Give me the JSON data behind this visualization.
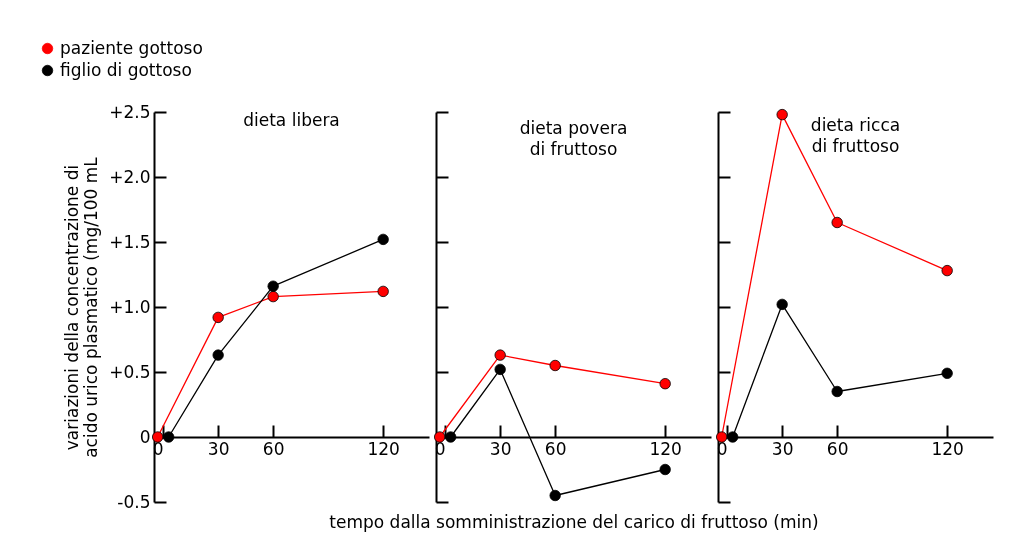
{
  "chart_data": [
    {
      "type": "line",
      "title": "dieta libera",
      "ylabel": "variazioni della concentrazione di\nacido urico plasmatico (mg/100 mL",
      "xlim": [
        -5,
        145
      ],
      "xticks": [
        0,
        30,
        60,
        120
      ],
      "ylim": [
        -0.5,
        2.5
      ],
      "yticks": [
        -0.5,
        0,
        {
          "value": 0.5,
          "label": "+0.5"
        },
        {
          "value": 1,
          "label": "+1.0"
        },
        {
          "value": 1.5,
          "label": "+1.5"
        },
        {
          "value": 2,
          "label": "+2.0"
        },
        {
          "value": 2.5,
          "label": "+2.5"
        }
      ],
      "marker": "circle",
      "legend": "top left",
      "series": [
        {
          "name": "paziente gottoso",
          "color": "#ff0000",
          "x": [
            -3,
            30,
            60,
            120
          ],
          "values": [
            0,
            0.92,
            1.08,
            1.12
          ]
        },
        {
          "name": "figlio di gottoso",
          "color": "#000000",
          "x": [
            3,
            30,
            60,
            120
          ],
          "values": [
            0,
            0.63,
            1.16,
            1.52
          ]
        }
      ]
    },
    {
      "type": "line",
      "title": "dieta povera\ndi fruttoso",
      "xlabel": "tempo dalla somministrazione del carico di fruttoso (min)",
      "xlim": [
        -5,
        145
      ],
      "xticks": [
        0,
        30,
        60,
        120
      ],
      "ylim": [
        -0.5,
        2.5
      ],
      "yticks": [
        -0.5,
        0,
        0.5,
        1,
        1.5,
        2,
        2.5
      ],
      "marker": "circle",
      "tick_labels": "x",
      "series": [
        {
          "color": "#ff0000",
          "x": [
            -3,
            30,
            60,
            120
          ],
          "values": [
            0,
            0.63,
            0.55,
            0.41
          ]
        },
        {
          "color": "#000000",
          "x": [
            3,
            30,
            60,
            120
          ],
          "values": [
            0,
            0.52,
            -0.45,
            -0.25
          ]
        }
      ]
    },
    {
      "type": "line",
      "title": "dieta ricca\ndi fruttoso",
      "xlim": [
        -5,
        145
      ],
      "xticks": [
        0,
        30,
        60,
        120
      ],
      "ylim": [
        -0.5,
        2.5
      ],
      "yticks": [
        -0.5,
        0,
        0.5,
        1,
        1.5,
        2,
        2.5
      ],
      "marker": "circle",
      "tick_labels": "x",
      "series": [
        {
          "color": "#ff0000",
          "x": [
            -3,
            30,
            60,
            120
          ],
          "values": [
            0,
            2.48,
            1.65,
            1.28
          ]
        },
        {
          "color": "#000000",
          "x": [
            3,
            30,
            60,
            120
          ],
          "values": [
            0,
            1.02,
            0.35,
            0.49
          ]
        }
      ]
    }
  ]
}
